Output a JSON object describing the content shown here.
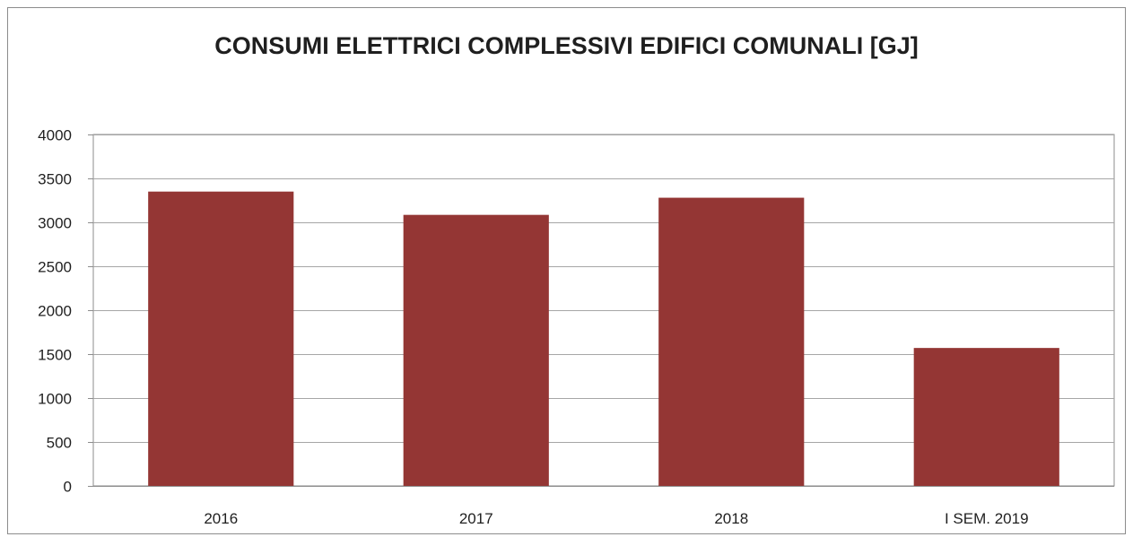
{
  "chart_data": {
    "type": "bar",
    "title": "CONSUMI ELETTRICI  COMPLESSIVI EDIFICI COMUNALI [GJ]",
    "xlabel": "",
    "ylabel": "",
    "categories": [
      "2016",
      "2017",
      "2018",
      "I SEM. 2019"
    ],
    "values": [
      3350,
      3085,
      3280,
      1570
    ],
    "ylim": [
      0,
      4000
    ],
    "yticks": [
      0,
      500,
      1000,
      1500,
      2000,
      2500,
      3000,
      3500,
      4000
    ],
    "grid": "horizontal",
    "legend": "none",
    "colors": {
      "bar": "#943634",
      "grid": "#a6a6a6",
      "axis": "#8c8c8c",
      "text": "#1f1f1f"
    }
  }
}
